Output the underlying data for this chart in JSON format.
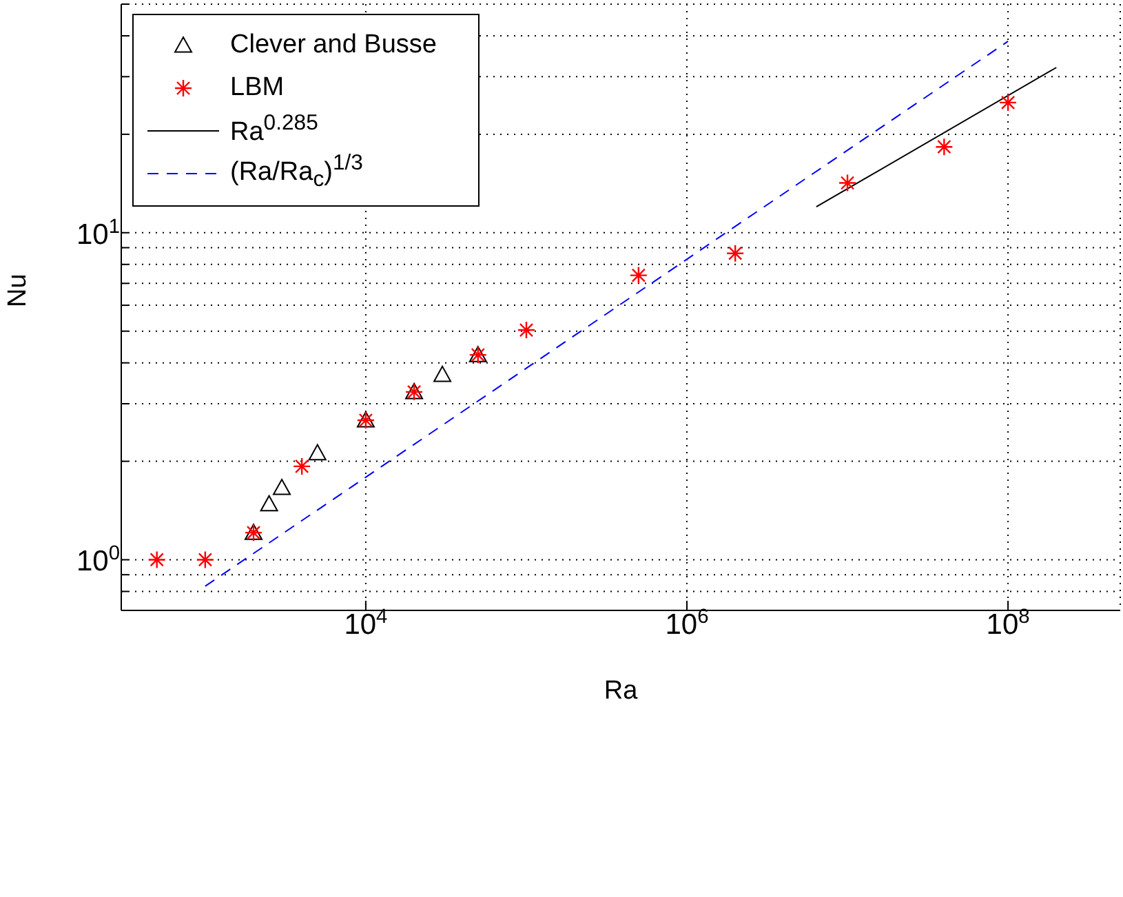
{
  "chart_data": {
    "type": "scatter",
    "xlabel": "Ra",
    "ylabel": "Nu",
    "log": "xy",
    "grid": true,
    "legend": "top left",
    "xlim": [
      300,
      500000000
    ],
    "xticks": [
      {
        "value": 10000,
        "label": "10$^{4}$"
      },
      {
        "value": 1000000,
        "label": "10$^{6}$"
      },
      {
        "value": 100000000,
        "label": "10$^{8}$"
      }
    ],
    "ylim": [
      0.7,
      50
    ],
    "yticks": [
      {
        "value": 0.7,
        "label": null
      },
      {
        "value": 0.8,
        "label": null
      },
      {
        "value": 0.9,
        "label": null
      },
      {
        "value": 1,
        "label": "10$^{0}$"
      },
      {
        "value": 2,
        "label": null
      },
      {
        "value": 3,
        "label": null
      },
      {
        "value": 4,
        "label": null
      },
      {
        "value": 5,
        "label": null
      },
      {
        "value": 6,
        "label": null
      },
      {
        "value": 7,
        "label": null
      },
      {
        "value": 8,
        "label": null
      },
      {
        "value": 9,
        "label": null
      },
      {
        "value": 10,
        "label": "10$^{1}$"
      },
      {
        "value": 20,
        "label": null
      },
      {
        "value": 30,
        "label": null
      },
      {
        "value": 40,
        "label": null
      },
      {
        "value": 50,
        "label": null
      }
    ],
    "series": [
      {
        "name": "Clever and Busse",
        "marker": "triangle",
        "color": "#000000",
        "x": [
          2000,
          2500,
          3000,
          5000,
          10000,
          20000,
          30000,
          50000
        ],
        "values": [
          1.21,
          1.48,
          1.66,
          2.12,
          2.67,
          3.26,
          3.68,
          4.23
        ]
      },
      {
        "name": "LBM",
        "marker": "cross",
        "color": "#ff0000",
        "x": [
          500,
          1000,
          2000,
          4000,
          10000,
          20000,
          50000,
          100000,
          500000,
          2000000,
          10000000,
          40000000,
          100000000
        ],
        "values": [
          1.0,
          1.0,
          1.21,
          1.93,
          2.67,
          3.26,
          4.23,
          5.04,
          7.41,
          8.65,
          14.2,
          18.3,
          25.0
        ]
      },
      {
        "name": "Ra$^{0.285}$",
        "type": "line",
        "marker": "none",
        "line_style": "solid",
        "color": "#000000",
        "x": [
          6400000,
          200000000
        ],
        "values": [
          12.0,
          32.0
        ]
      },
      {
        "name": "(Ra/Ra$_{c}$)$^{1/3}$",
        "type": "line",
        "marker": "none",
        "line_style": "dashed",
        "color": "#0000ff",
        "x": [
          1000,
          100000000
        ],
        "values": [
          0.83,
          38.5
        ]
      }
    ]
  }
}
